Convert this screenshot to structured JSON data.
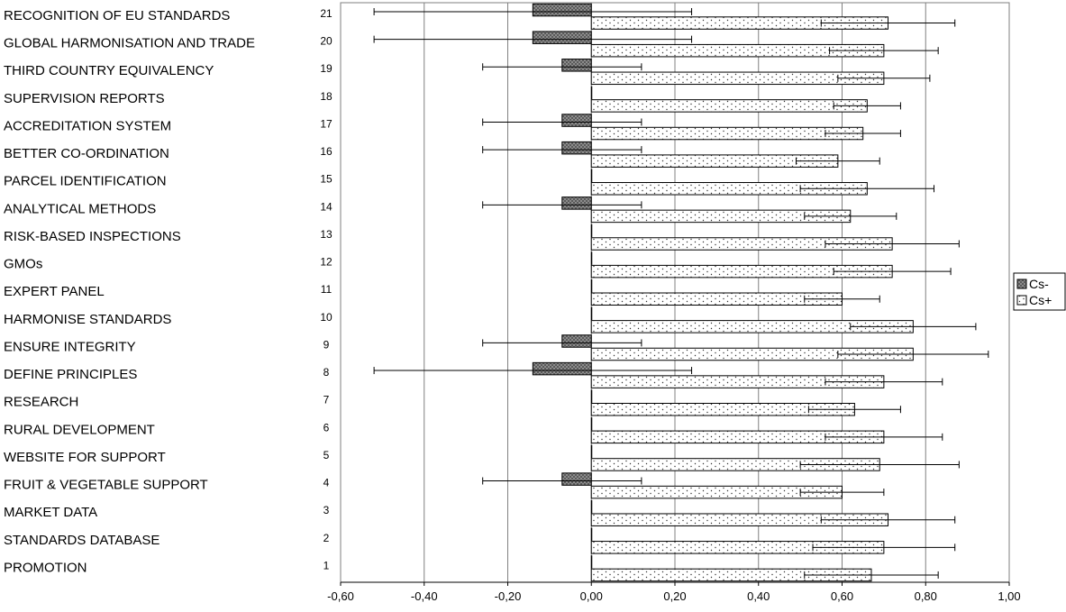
{
  "chart_data": {
    "type": "bar",
    "orientation": "horizontal",
    "x_ticks": [
      "-0,60",
      "-0,40",
      "-0,20",
      "0,00",
      "0,20",
      "0,40",
      "0,60",
      "0,80",
      "1,00"
    ],
    "xlim": [
      -0.6,
      1.0
    ],
    "grid": "vertical",
    "legend_position": "right",
    "categories": [
      {
        "label": "RECOGNITION OF EU STANDARDS",
        "number": "21"
      },
      {
        "label": "GLOBAL HARMONISATION AND TRADE",
        "number": "20"
      },
      {
        "label": "THIRD COUNTRY EQUIVALENCY",
        "number": "19"
      },
      {
        "label": "SUPERVISION REPORTS",
        "number": "18"
      },
      {
        "label": "ACCREDITATION SYSTEM",
        "number": "17"
      },
      {
        "label": "BETTER CO-ORDINATION",
        "number": "16"
      },
      {
        "label": "PARCEL IDENTIFICATION",
        "number": "15"
      },
      {
        "label": "ANALYTICAL METHODS",
        "number": "14"
      },
      {
        "label": "RISK-BASED INSPECTIONS",
        "number": "13"
      },
      {
        "label": "GMOs",
        "number": "12"
      },
      {
        "label": "EXPERT PANEL",
        "number": "11"
      },
      {
        "label": "HARMONISE STANDARDS",
        "number": "10"
      },
      {
        "label": "ENSURE INTEGRITY",
        "number": "9"
      },
      {
        "label": "DEFINE PRINCIPLES",
        "number": "8"
      },
      {
        "label": "RESEARCH",
        "number": "7"
      },
      {
        "label": "RURAL DEVELOPMENT",
        "number": "6"
      },
      {
        "label": "WEBSITE FOR SUPPORT",
        "number": "5"
      },
      {
        "label": "FRUIT & VEGETABLE SUPPORT",
        "number": "4"
      },
      {
        "label": "MARKET DATA",
        "number": "3"
      },
      {
        "label": "STANDARDS DATABASE",
        "number": "2"
      },
      {
        "label": "PROMOTION",
        "number": "1"
      }
    ],
    "series": [
      {
        "name": "Cs-",
        "color": "#8c8c8c",
        "values": [
          -0.14,
          -0.14,
          -0.07,
          0,
          -0.07,
          -0.07,
          0,
          -0.07,
          0,
          0,
          0,
          0,
          -0.07,
          -0.14,
          0,
          0,
          0,
          -0.07,
          0,
          0,
          0
        ],
        "error": [
          0.38,
          0.38,
          0.19,
          0,
          0.19,
          0.19,
          0,
          0.19,
          0,
          0,
          0,
          0,
          0.19,
          0.38,
          0,
          0,
          0,
          0.19,
          0,
          0,
          0
        ]
      },
      {
        "name": "Cs+",
        "color": "#ffffff",
        "values": [
          0.71,
          0.7,
          0.7,
          0.66,
          0.65,
          0.59,
          0.66,
          0.62,
          0.72,
          0.72,
          0.6,
          0.77,
          0.77,
          0.7,
          0.63,
          0.7,
          0.69,
          0.6,
          0.71,
          0.7,
          0.67
        ],
        "error": [
          0.16,
          0.13,
          0.11,
          0.08,
          0.09,
          0.1,
          0.16,
          0.11,
          0.16,
          0.14,
          0.09,
          0.15,
          0.18,
          0.14,
          0.11,
          0.14,
          0.19,
          0.1,
          0.16,
          0.17,
          0.16
        ]
      }
    ]
  }
}
